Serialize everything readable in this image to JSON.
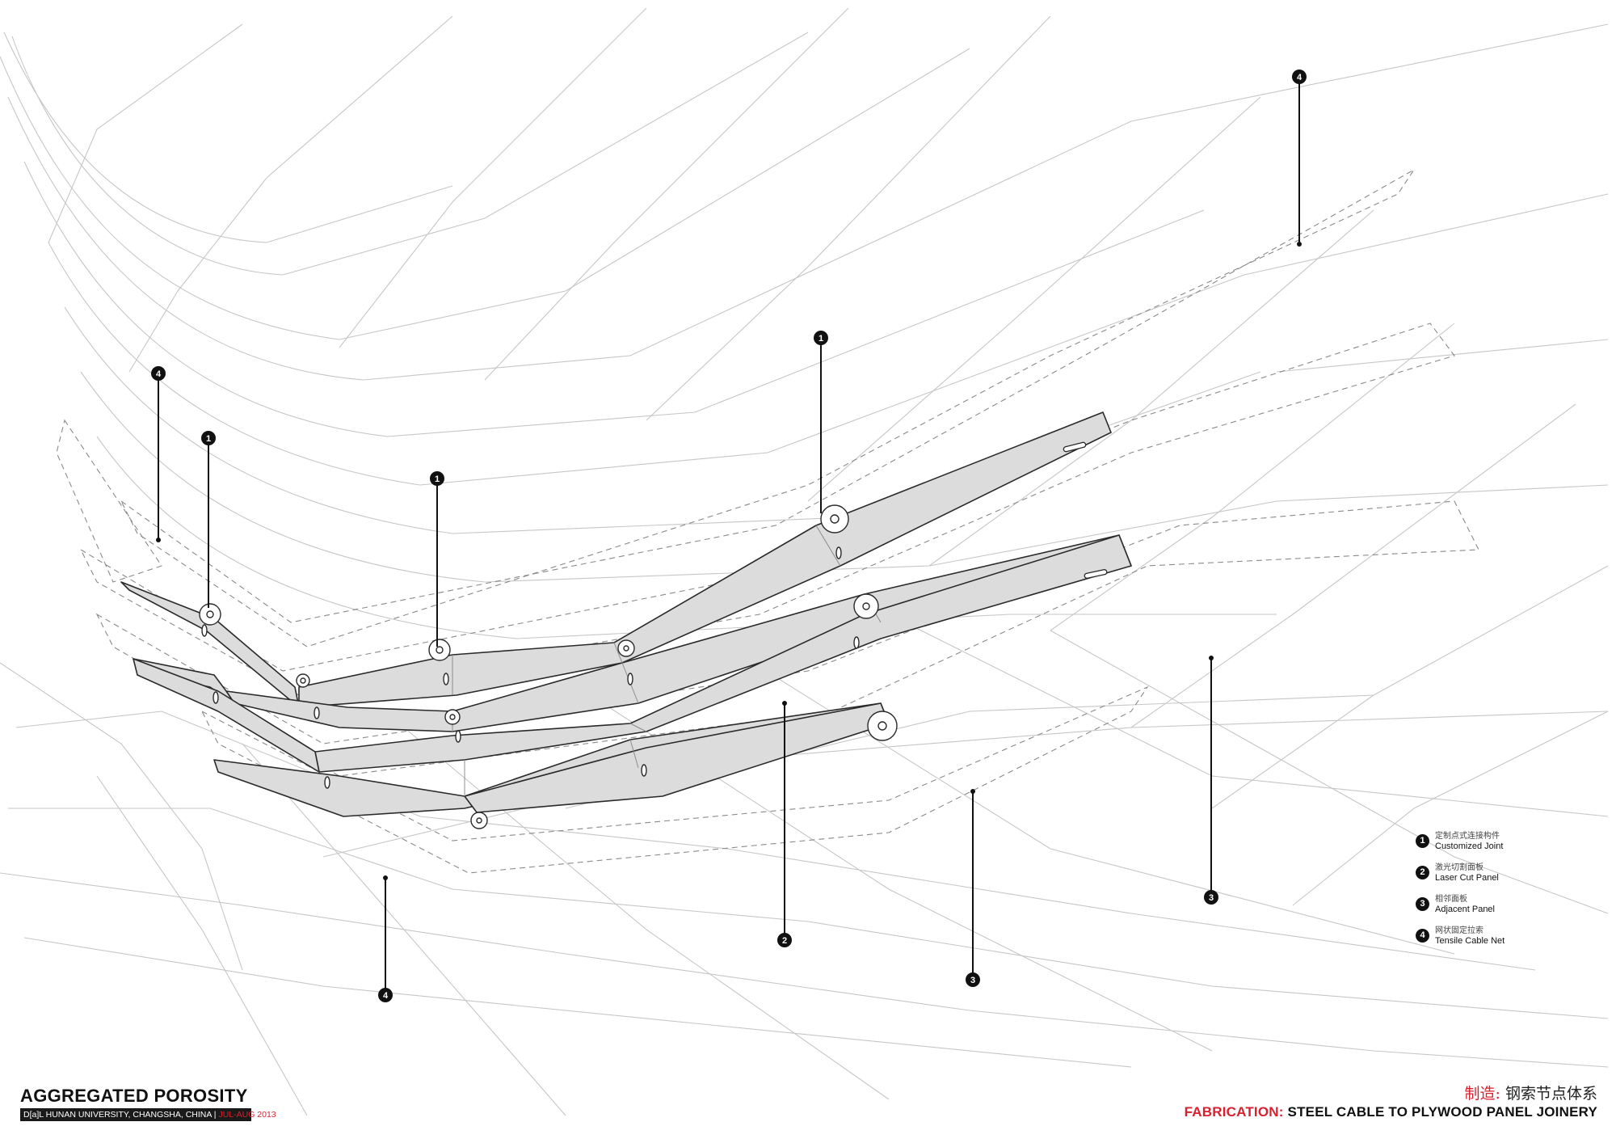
{
  "legend": [
    {
      "num": "1",
      "cn": "定制点式连接构件",
      "en": "Customized Joint"
    },
    {
      "num": "2",
      "cn": "激光切割面板",
      "en": "Laser Cut Panel"
    },
    {
      "num": "3",
      "cn": "相邻面板",
      "en": "Adjacent Panel"
    },
    {
      "num": "4",
      "cn": "网状固定拉索",
      "en": "Tensile Cable Net"
    }
  ],
  "callouts": [
    "4",
    "4",
    "1",
    "1",
    "1",
    "2",
    "3",
    "3",
    "4"
  ],
  "title_block": {
    "title": "AGGREGATED POROSITY",
    "subtitle": "D[a]L HUNAN UNIVERSITY, CHANGSHA, CHINA | ",
    "date": "JUL-AUG 2013"
  },
  "sheet": {
    "cn_accent": "制造:",
    "cn_rest": " 钢索节点体系",
    "en_accent": "FABRICATION:",
    "en_rest": " STEEL CABLE TO PLYWOOD PANEL JOINERY"
  },
  "colors": {
    "accent_red": "#d8202f",
    "panel_fill": "#dcdcdc",
    "cable_line": "#c4c4c4",
    "callout_dark": "#111111"
  }
}
